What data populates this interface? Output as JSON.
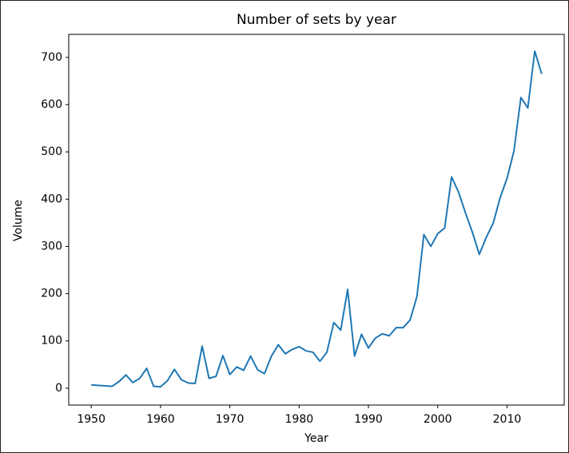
{
  "chart_data": {
    "type": "line",
    "title": "Number of sets by year",
    "x_label": "Year",
    "y_label": "Volume",
    "x": [
      1950,
      1953,
      1954,
      1955,
      1956,
      1957,
      1958,
      1959,
      1960,
      1961,
      1962,
      1963,
      1964,
      1965,
      1966,
      1967,
      1968,
      1969,
      1970,
      1971,
      1972,
      1973,
      1974,
      1975,
      1976,
      1977,
      1978,
      1979,
      1980,
      1981,
      1982,
      1983,
      1984,
      1985,
      1986,
      1987,
      1988,
      1989,
      1990,
      1991,
      1992,
      1993,
      1994,
      1995,
      1996,
      1997,
      1998,
      1999,
      2000,
      2001,
      2002,
      2003,
      2004,
      2005,
      2006,
      2007,
      2008,
      2009,
      2010,
      2011,
      2012,
      2013,
      2014,
      2015
    ],
    "series": [
      {
        "name": "Volume",
        "color": "#1f77b4",
        "values": [
          7,
          4,
          14,
          28,
          12,
          21,
          42,
          4,
          3,
          16,
          40,
          18,
          11,
          10,
          89,
          21,
          25,
          69,
          29,
          45,
          38,
          68,
          39,
          31,
          68,
          92,
          73,
          82,
          88,
          79,
          76,
          57,
          76,
          139,
          123,
          209,
          68,
          114,
          85,
          106,
          115,
          111,
          128,
          128,
          144,
          194,
          325,
          300,
          327,
          339,
          447,
          415,
          371,
          330,
          283,
          319,
          349,
          403,
          444,
          502,
          615,
          593,
          713,
          665
        ]
      }
    ],
    "xlim": [
      1946.75,
      2018.25
    ],
    "xticks": [
      1950,
      1960,
      1970,
      1980,
      1990,
      2000,
      2010
    ],
    "ylim": [
      -35.65,
      748.65
    ],
    "yticks": [
      0,
      100,
      200,
      300,
      400,
      500,
      600,
      700
    ],
    "grid": false
  }
}
